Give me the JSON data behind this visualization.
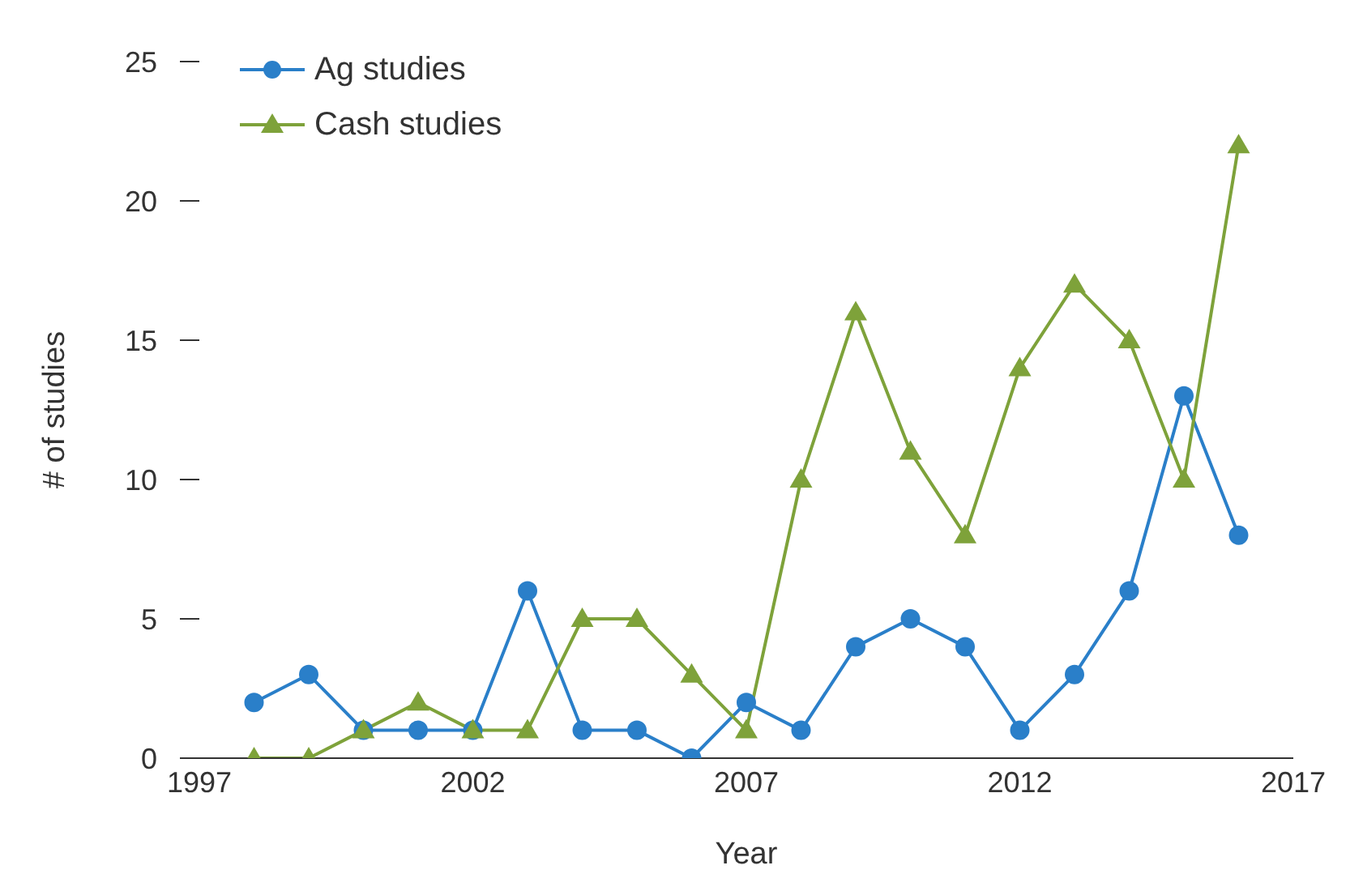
{
  "chart_data": {
    "type": "line",
    "xlabel": "Year",
    "ylabel": "# of studies",
    "x": [
      1998,
      1999,
      2000,
      2001,
      2002,
      2003,
      2004,
      2005,
      2006,
      2007,
      2008,
      2009,
      2010,
      2011,
      2012,
      2013,
      2014,
      2015,
      2016
    ],
    "series": [
      {
        "name": "Ag studies",
        "color": "#2a7fc9",
        "marker": "circle",
        "values": [
          2,
          3,
          1,
          1,
          1,
          6,
          1,
          1,
          0,
          2,
          1,
          4,
          5,
          4,
          1,
          3,
          6,
          13,
          8
        ]
      },
      {
        "name": "Cash studies",
        "color": "#7ea23a",
        "marker": "triangle",
        "values": [
          0,
          0,
          1,
          2,
          1,
          1,
          5,
          5,
          3,
          1,
          10,
          16,
          11,
          8,
          14,
          17,
          15,
          10,
          22
        ]
      }
    ],
    "xlim": [
      1997,
      2017
    ],
    "xticks": [
      1997,
      2002,
      2007,
      2012,
      2017
    ],
    "ylim": [
      0,
      25
    ],
    "yticks": [
      0,
      5,
      10,
      15,
      20,
      25
    ],
    "grid": false,
    "legend": "top left",
    "line_style": "solid"
  }
}
